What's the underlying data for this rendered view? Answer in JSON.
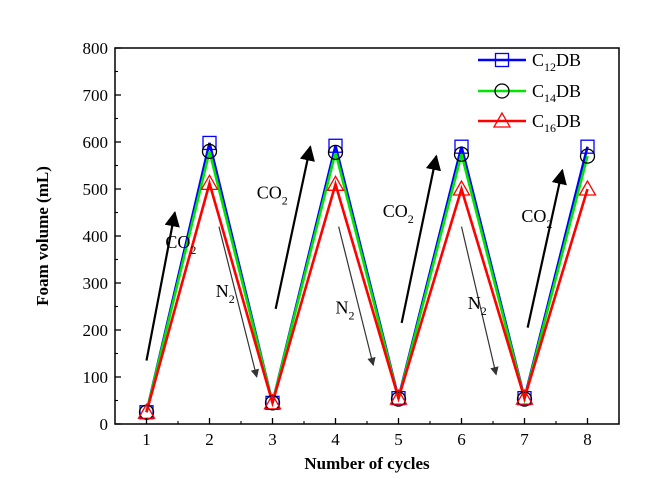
{
  "chart_data": {
    "type": "line",
    "xlabel": "Number of cycles",
    "ylabel": "Foam volume (mL)",
    "x": [
      1,
      2,
      3,
      4,
      5,
      6,
      7,
      8
    ],
    "xlim": [
      0.5,
      8.5
    ],
    "ylim": [
      0,
      800
    ],
    "x_ticks": [
      "1",
      "2",
      "3",
      "4",
      "5",
      "6",
      "7",
      "8"
    ],
    "y_ticks": [
      "0",
      "100",
      "200",
      "300",
      "400",
      "500",
      "600",
      "700",
      "800"
    ],
    "grid": false,
    "legend_position": "top-right",
    "series": [
      {
        "name_main": "C",
        "name_sub": "12",
        "name_tail": "DB",
        "color": "#0000ff",
        "marker": "square",
        "values": [
          25,
          598,
          45,
          592,
          55,
          590,
          55,
          590
        ]
      },
      {
        "name_main": "C",
        "name_sub": "14",
        "name_tail": "DB",
        "color": "#00e600",
        "marker": "circle",
        "values": [
          25,
          580,
          45,
          578,
          53,
          574,
          53,
          570
        ]
      },
      {
        "name_main": "C",
        "name_sub": "16",
        "name_tail": "DB",
        "color": "#ff0000",
        "marker": "triangle",
        "values": [
          25,
          512,
          45,
          510,
          55,
          500,
          55,
          500
        ]
      }
    ],
    "annotations": [
      {
        "main": "CO",
        "sub": "2",
        "x": 1.3,
        "y": 375,
        "arrow": [
          [
            1.0,
            135
          ],
          [
            1.45,
            450
          ]
        ],
        "arrow_color": "#000000"
      },
      {
        "main": "N",
        "sub": "2",
        "x": 2.1,
        "y": 270,
        "arrow": [
          [
            2.15,
            420
          ],
          [
            2.75,
            100
          ]
        ],
        "arrow_color": "#333333"
      },
      {
        "main": "CO",
        "sub": "2",
        "x": 2.75,
        "y": 480,
        "arrow": [
          [
            3.05,
            245
          ],
          [
            3.6,
            590
          ]
        ],
        "arrow_color": "#000000"
      },
      {
        "main": "N",
        "sub": "2",
        "x": 4.0,
        "y": 235,
        "arrow": [
          [
            4.05,
            420
          ],
          [
            4.6,
            125
          ]
        ],
        "arrow_color": "#333333"
      },
      {
        "main": "CO",
        "sub": "2",
        "x": 4.75,
        "y": 440,
        "arrow": [
          [
            5.05,
            215
          ],
          [
            5.6,
            570
          ]
        ],
        "arrow_color": "#000000"
      },
      {
        "main": "N",
        "sub": "2",
        "x": 6.1,
        "y": 245,
        "arrow": [
          [
            6.0,
            420
          ],
          [
            6.55,
            105
          ]
        ],
        "arrow_color": "#333333"
      },
      {
        "main": "CO",
        "sub": "2",
        "x": 6.95,
        "y": 430,
        "arrow": [
          [
            7.05,
            205
          ],
          [
            7.6,
            540
          ]
        ],
        "arrow_color": "#000000"
      }
    ]
  }
}
